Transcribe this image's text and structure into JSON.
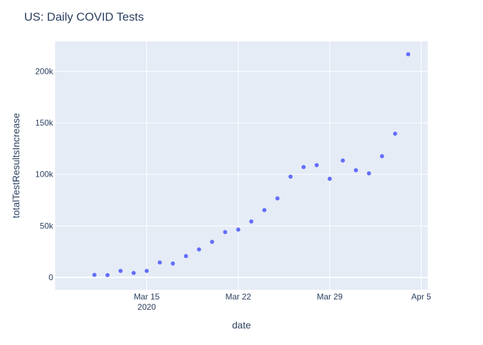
{
  "chart_data": {
    "type": "scatter",
    "title": "US: Daily COVID Tests",
    "xlabel": "date",
    "ylabel": "totalTestResultsIncrease",
    "x": [
      "2020-03-11",
      "2020-03-12",
      "2020-03-13",
      "2020-03-14",
      "2020-03-15",
      "2020-03-16",
      "2020-03-17",
      "2020-03-18",
      "2020-03-19",
      "2020-03-20",
      "2020-03-21",
      "2020-03-22",
      "2020-03-23",
      "2020-03-24",
      "2020-03-25",
      "2020-03-26",
      "2020-03-27",
      "2020-03-28",
      "2020-03-29",
      "2020-03-30",
      "2020-03-31",
      "2020-04-01",
      "2020-04-02",
      "2020-04-03",
      "2020-04-04"
    ],
    "y": [
      2500,
      2200,
      6300,
      4300,
      6300,
      14500,
      13500,
      20700,
      27200,
      34500,
      44000,
      46400,
      54300,
      65300,
      76700,
      97800,
      107100,
      108900,
      95700,
      113400,
      104000,
      101000,
      117600,
      139500,
      216500
    ],
    "xlim": [
      "2020-03-08T00:00",
      "2020-04-05T12:00"
    ],
    "ylim": [
      -12000,
      229000
    ],
    "x_ticks": [
      {
        "date": "2020-03-15",
        "label": "Mar 15",
        "sublabel": "2020"
      },
      {
        "date": "2020-03-22",
        "label": "Mar 22",
        "sublabel": ""
      },
      {
        "date": "2020-03-29",
        "label": "Mar 29",
        "sublabel": ""
      },
      {
        "date": "2020-04-05",
        "label": "Apr 5",
        "sublabel": ""
      }
    ],
    "y_ticks": [
      {
        "value": 0,
        "label": "0"
      },
      {
        "value": 50000,
        "label": "50k"
      },
      {
        "value": 100000,
        "label": "100k"
      },
      {
        "value": 150000,
        "label": "150k"
      },
      {
        "value": 200000,
        "label": "200k"
      }
    ],
    "grid": true,
    "colors": {
      "marker": "#636efa",
      "plot_background": "#e5ecf6",
      "grid": "#ffffff",
      "text": "#2a3f5f"
    }
  }
}
